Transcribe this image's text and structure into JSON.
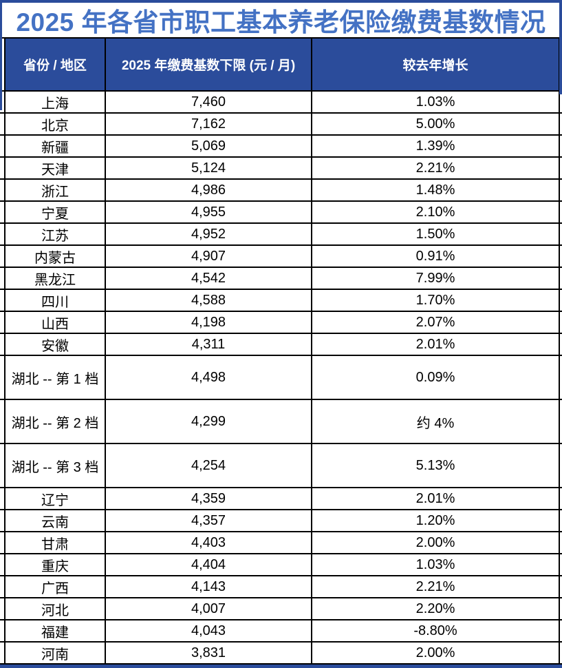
{
  "page": {
    "title": "2025 年各省市职工基本养老保险缴费基数情况"
  },
  "colors": {
    "title_blue": "#4472C4",
    "header_bg": "#2B4C9B",
    "border_black": "#000000",
    "body_bg": "#FFFFFF",
    "header_text": "#FFFFFF",
    "body_text": "#000000"
  },
  "chart_data": {
    "type": "table",
    "title": "2025 年各省市职工基本养老保险缴费基数情况",
    "columns": [
      "省份 / 地区",
      "2025 年缴费基数下限 (元 / 月)",
      "较去年增长"
    ],
    "rows": [
      [
        "上海",
        "7,460",
        "1.03%"
      ],
      [
        "北京",
        "7,162",
        "5.00%"
      ],
      [
        "新疆",
        "5,069",
        "1.39%"
      ],
      [
        "天津",
        "5,124",
        "2.21%"
      ],
      [
        "浙江",
        "4,986",
        "1.48%"
      ],
      [
        "宁夏",
        "4,955",
        "2.10%"
      ],
      [
        "江苏",
        "4,952",
        "1.50%"
      ],
      [
        "内蒙古",
        "4,907",
        "0.91%"
      ],
      [
        "黑龙江",
        "4,542",
        "7.99%"
      ],
      [
        "四川",
        "4,588",
        "1.70%"
      ],
      [
        "山西",
        "4,198",
        "2.07%"
      ],
      [
        "安徽",
        "4,311",
        "2.01%"
      ],
      [
        "湖北 -- 第 1 档",
        "4,498",
        "0.09%"
      ],
      [
        "湖北 -- 第 2 档",
        "4,299",
        "约 4%"
      ],
      [
        "湖北 -- 第 3 档",
        "4,254",
        "5.13%"
      ],
      [
        "辽宁",
        "4,359",
        "2.01%"
      ],
      [
        "云南",
        "4,357",
        "1.20%"
      ],
      [
        "甘肃",
        "4,403",
        "2.00%"
      ],
      [
        "重庆",
        "4,404",
        "1.03%"
      ],
      [
        "广西",
        "4,143",
        "2.21%"
      ],
      [
        "河北",
        "4,007",
        "2.20%"
      ],
      [
        "福建",
        "4,043",
        "-8.80%"
      ],
      [
        "河南",
        "3,831",
        "2.00%"
      ]
    ],
    "tall_rows": [
      12,
      13,
      14
    ],
    "layout": {
      "grid": true,
      "legend": false
    }
  }
}
